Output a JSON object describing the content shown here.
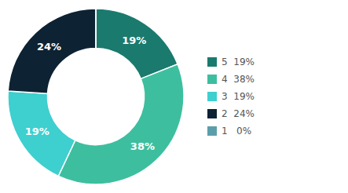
{
  "chart_data": {
    "type": "pie",
    "categories": [
      "5  19%",
      "4  38%",
      "3  19%",
      "2  24%",
      "1   0%"
    ],
    "values": [
      19,
      38,
      19,
      24,
      0.001
    ],
    "value_labels": [
      "19%",
      "38%",
      "19%",
      "24%",
      null
    ],
    "colors": [
      "#1a7a6e",
      "#3dbf9f",
      "#3ecfcf",
      "#0d2233",
      "#5b9eab"
    ],
    "data_labels": true,
    "legend": "right"
  }
}
